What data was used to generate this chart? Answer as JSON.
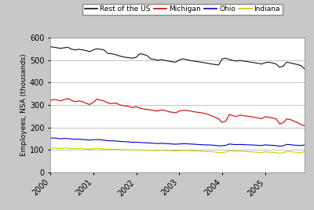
{
  "title": "",
  "ylabel": "Employees, NSA (thousands)",
  "xlabel": "",
  "ylim": [
    0,
    600
  ],
  "yticks": [
    0,
    100,
    200,
    300,
    400,
    500,
    600
  ],
  "xlim": [
    0,
    71
  ],
  "legend_labels": [
    "Michigan",
    "Indiana",
    "Ohio",
    "Rest of the US"
  ],
  "legend_colors": [
    "#cc0000",
    "#cccc00",
    "#0000cc",
    "#111111"
  ],
  "fig_background": "#c8c8c8",
  "plot_background": "#ffffff",
  "line_width": 0.8,
  "year_ticks": [
    0,
    12,
    24,
    36,
    48,
    60
  ],
  "year_labels": [
    "2000",
    "2001",
    "2002",
    "2003",
    "2004",
    "2005"
  ],
  "michigan": [
    320,
    325,
    322,
    318,
    326,
    328,
    320,
    315,
    318,
    315,
    308,
    302,
    312,
    326,
    322,
    318,
    310,
    306,
    309,
    304,
    298,
    296,
    293,
    288,
    293,
    286,
    283,
    280,
    278,
    275,
    273,
    278,
    276,
    270,
    268,
    265,
    273,
    276,
    276,
    273,
    270,
    268,
    266,
    263,
    258,
    252,
    245,
    238,
    222,
    228,
    258,
    252,
    249,
    255,
    252,
    250,
    248,
    245,
    242,
    239,
    248,
    245,
    242,
    239,
    216,
    220,
    238,
    235,
    228,
    222,
    212,
    208
  ],
  "indiana": [
    107,
    108,
    107,
    106,
    108,
    107,
    106,
    105,
    106,
    105,
    104,
    103,
    105,
    106,
    105,
    104,
    103,
    102,
    103,
    102,
    101,
    100,
    100,
    99,
    100,
    100,
    99,
    98,
    98,
    97,
    97,
    98,
    97,
    96,
    95,
    95,
    96,
    97,
    97,
    96,
    95,
    95,
    94,
    93,
    93,
    92,
    90,
    88,
    88,
    90,
    96,
    95,
    93,
    94,
    93,
    92,
    91,
    90,
    89,
    88,
    91,
    90,
    89,
    88,
    85,
    87,
    93,
    92,
    90,
    89,
    88,
    92
  ],
  "ohio": [
    152,
    153,
    151,
    149,
    151,
    150,
    148,
    147,
    148,
    146,
    145,
    143,
    145,
    146,
    145,
    143,
    141,
    140,
    140,
    138,
    137,
    136,
    135,
    133,
    134,
    133,
    132,
    131,
    130,
    129,
    128,
    129,
    128,
    127,
    126,
    125,
    126,
    127,
    127,
    126,
    125,
    124,
    123,
    122,
    122,
    121,
    120,
    118,
    118,
    120,
    126,
    124,
    123,
    124,
    123,
    122,
    122,
    121,
    120,
    119,
    122,
    121,
    120,
    119,
    116,
    118,
    124,
    123,
    121,
    120,
    119,
    122
  ],
  "restofus": [
    560,
    558,
    555,
    553,
    556,
    557,
    549,
    546,
    549,
    546,
    543,
    538,
    546,
    551,
    549,
    546,
    531,
    529,
    526,
    521,
    516,
    513,
    511,
    509,
    513,
    529,
    526,
    521,
    506,
    504,
    499,
    503,
    499,
    496,
    493,
    491,
    501,
    506,
    503,
    499,
    496,
    494,
    491,
    489,
    486,
    483,
    481,
    479,
    506,
    509,
    503,
    499,
    496,
    499,
    496,
    494,
    491,
    489,
    486,
    483,
    489,
    491,
    488,
    484,
    469,
    473,
    491,
    488,
    484,
    481,
    476,
    461
  ]
}
